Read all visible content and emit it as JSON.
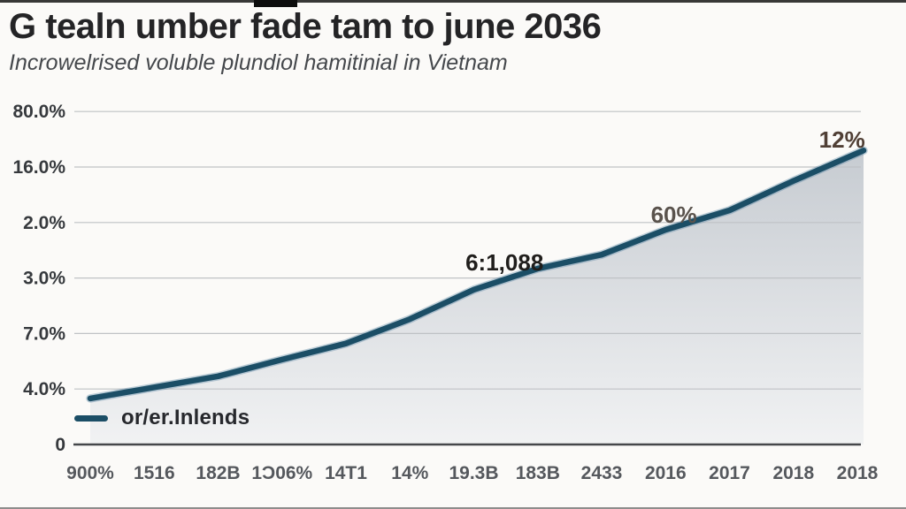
{
  "window": {
    "bg_color": "#fbfaf8",
    "top_bar_color": "#151515"
  },
  "header": {
    "title": "G tealn umber fade tam to june 2036",
    "subtitle": "Incrowelrised voluble plundiol hamitinial in Vietnam"
  },
  "legend": {
    "label": "or/er.Inlends",
    "swatch_color": "#1b4e66"
  },
  "chart_data": {
    "type": "area",
    "title": "G tealn umber fade tam to june 2036",
    "subtitle": "Incrowelrised voluble plundiol hamitinial in Vietnam",
    "categories": [
      "900%",
      "1516",
      "182B",
      "1Ɔ06%",
      "14T1",
      "14%",
      "19.3B",
      "183B",
      "2433",
      "2016",
      "2017",
      "2018",
      "2018"
    ],
    "series": [
      {
        "name": "or/er.Inlends",
        "values": [
          0.83,
          1.03,
          1.23,
          1.53,
          1.82,
          2.26,
          2.79,
          3.17,
          3.42,
          3.87,
          4.22,
          4.75,
          5.25
        ]
      }
    ],
    "y_ticks": [
      {
        "label": "0",
        "unit": 0
      },
      {
        "label": "4.0%",
        "unit": 1
      },
      {
        "label": "7.0%",
        "unit": 2
      },
      {
        "label": "3.0%",
        "unit": 3
      },
      {
        "label": "2.0%",
        "unit": 4
      },
      {
        "label": "16.0%",
        "unit": 5
      },
      {
        "label": "80.0%",
        "unit": 6
      }
    ],
    "ylim": [
      0,
      6.55
    ],
    "grid": true,
    "legend_position": "bottom-left",
    "line_color": "#1b4e66",
    "line_halo_color": "#4a7c9d",
    "area_gradient_top": "#c6cbd1",
    "area_gradient_bottom": "#f1f2f3",
    "grid_color": "#bfc2c5",
    "axis_color": "#45474a",
    "y_label_color": "#36393d",
    "x_label_color": "#55585d",
    "annotations": [
      {
        "label": "6:1,088",
        "anchor_index": 6.48,
        "unit": 3.28,
        "color": "#201e1c"
      },
      {
        "label": "60%",
        "anchor_index": 9.13,
        "unit": 4.14,
        "color": "#5a534d"
      },
      {
        "label": "12%",
        "anchor_index": 11.76,
        "unit": 5.49,
        "color": "#503f35"
      }
    ]
  }
}
